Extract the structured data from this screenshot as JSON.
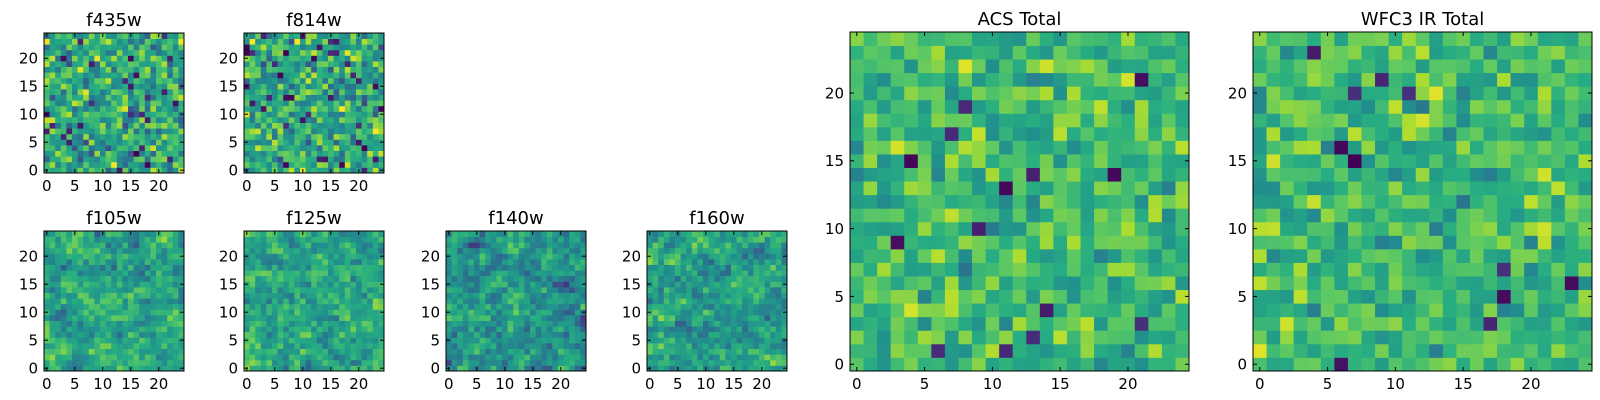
{
  "figure": {
    "colormap": "viridis",
    "colors": {
      "low": "#440154",
      "mid": "#21908c",
      "high": "#fde725",
      "axis": "#000000",
      "background": "#ffffff"
    }
  },
  "chart_data": [
    {
      "id": "f435w",
      "type": "heatmap",
      "title": "f435w",
      "shape": [
        25,
        25
      ],
      "xlim": [
        0,
        24
      ],
      "ylim": [
        0,
        24
      ],
      "xticks": [
        0,
        5,
        10,
        15,
        20
      ],
      "yticks": [
        0,
        5,
        10,
        15,
        20
      ],
      "seed": 11,
      "smooth": 0,
      "bias": 0.62,
      "spread": 0.3,
      "dark_rate": 0.05,
      "values": []
    },
    {
      "id": "f814w",
      "type": "heatmap",
      "title": "f814w",
      "shape": [
        25,
        25
      ],
      "xlim": [
        0,
        24
      ],
      "ylim": [
        0,
        24
      ],
      "xticks": [
        0,
        5,
        10,
        15,
        20
      ],
      "yticks": [
        0,
        5,
        10,
        15,
        20
      ],
      "seed": 23,
      "smooth": 0,
      "bias": 0.62,
      "spread": 0.3,
      "dark_rate": 0.05,
      "values": []
    },
    {
      "id": "f105w",
      "type": "heatmap",
      "title": "f105w",
      "shape": [
        25,
        25
      ],
      "xlim": [
        0,
        24
      ],
      "ylim": [
        0,
        24
      ],
      "xticks": [
        0,
        5,
        10,
        15,
        20
      ],
      "yticks": [
        0,
        5,
        10,
        15,
        20
      ],
      "seed": 37,
      "smooth": 1,
      "bias": 0.62,
      "spread": 0.32,
      "dark_rate": 0.04,
      "values": []
    },
    {
      "id": "f125w",
      "type": "heatmap",
      "title": "f125w",
      "shape": [
        25,
        25
      ],
      "xlim": [
        0,
        24
      ],
      "ylim": [
        0,
        24
      ],
      "xticks": [
        0,
        5,
        10,
        15,
        20
      ],
      "yticks": [
        0,
        5,
        10,
        15,
        20
      ],
      "seed": 41,
      "smooth": 1,
      "bias": 0.62,
      "spread": 0.32,
      "dark_rate": 0.04,
      "values": []
    },
    {
      "id": "f140w",
      "type": "heatmap",
      "title": "f140w",
      "shape": [
        25,
        25
      ],
      "xlim": [
        0,
        24
      ],
      "ylim": [
        0,
        24
      ],
      "xticks": [
        0,
        5,
        10,
        15,
        20
      ],
      "yticks": [
        0,
        5,
        10,
        15,
        20
      ],
      "seed": 53,
      "smooth": 1,
      "bias": 0.55,
      "spread": 0.34,
      "dark_rate": 0.05,
      "values": []
    },
    {
      "id": "f160w",
      "type": "heatmap",
      "title": "f160w",
      "shape": [
        25,
        25
      ],
      "xlim": [
        0,
        24
      ],
      "ylim": [
        0,
        24
      ],
      "xticks": [
        0,
        5,
        10,
        15,
        20
      ],
      "yticks": [
        0,
        5,
        10,
        15,
        20
      ],
      "seed": 67,
      "smooth": 1,
      "bias": 0.58,
      "spread": 0.34,
      "dark_rate": 0.05,
      "values": []
    },
    {
      "id": "acs_total",
      "type": "heatmap",
      "title": "ACS Total",
      "shape": [
        25,
        25
      ],
      "xlim": [
        0,
        24
      ],
      "ylim": [
        0,
        24
      ],
      "xticks": [
        0,
        5,
        10,
        15,
        20
      ],
      "yticks": [
        0,
        5,
        10,
        15,
        20
      ],
      "seed": 79,
      "smooth": 0,
      "bias": 0.68,
      "spread": 0.22,
      "dark_rate": 0.02,
      "values": []
    },
    {
      "id": "wfc3_ir_total",
      "type": "heatmap",
      "title": "WFC3 IR Total",
      "shape": [
        25,
        25
      ],
      "xlim": [
        0,
        24
      ],
      "ylim": [
        0,
        24
      ],
      "xticks": [
        0,
        5,
        10,
        15,
        20
      ],
      "yticks": [
        0,
        5,
        10,
        15,
        20
      ],
      "seed": 97,
      "smooth": 0,
      "bias": 0.68,
      "spread": 0.22,
      "dark_rate": 0.02,
      "values": []
    }
  ]
}
